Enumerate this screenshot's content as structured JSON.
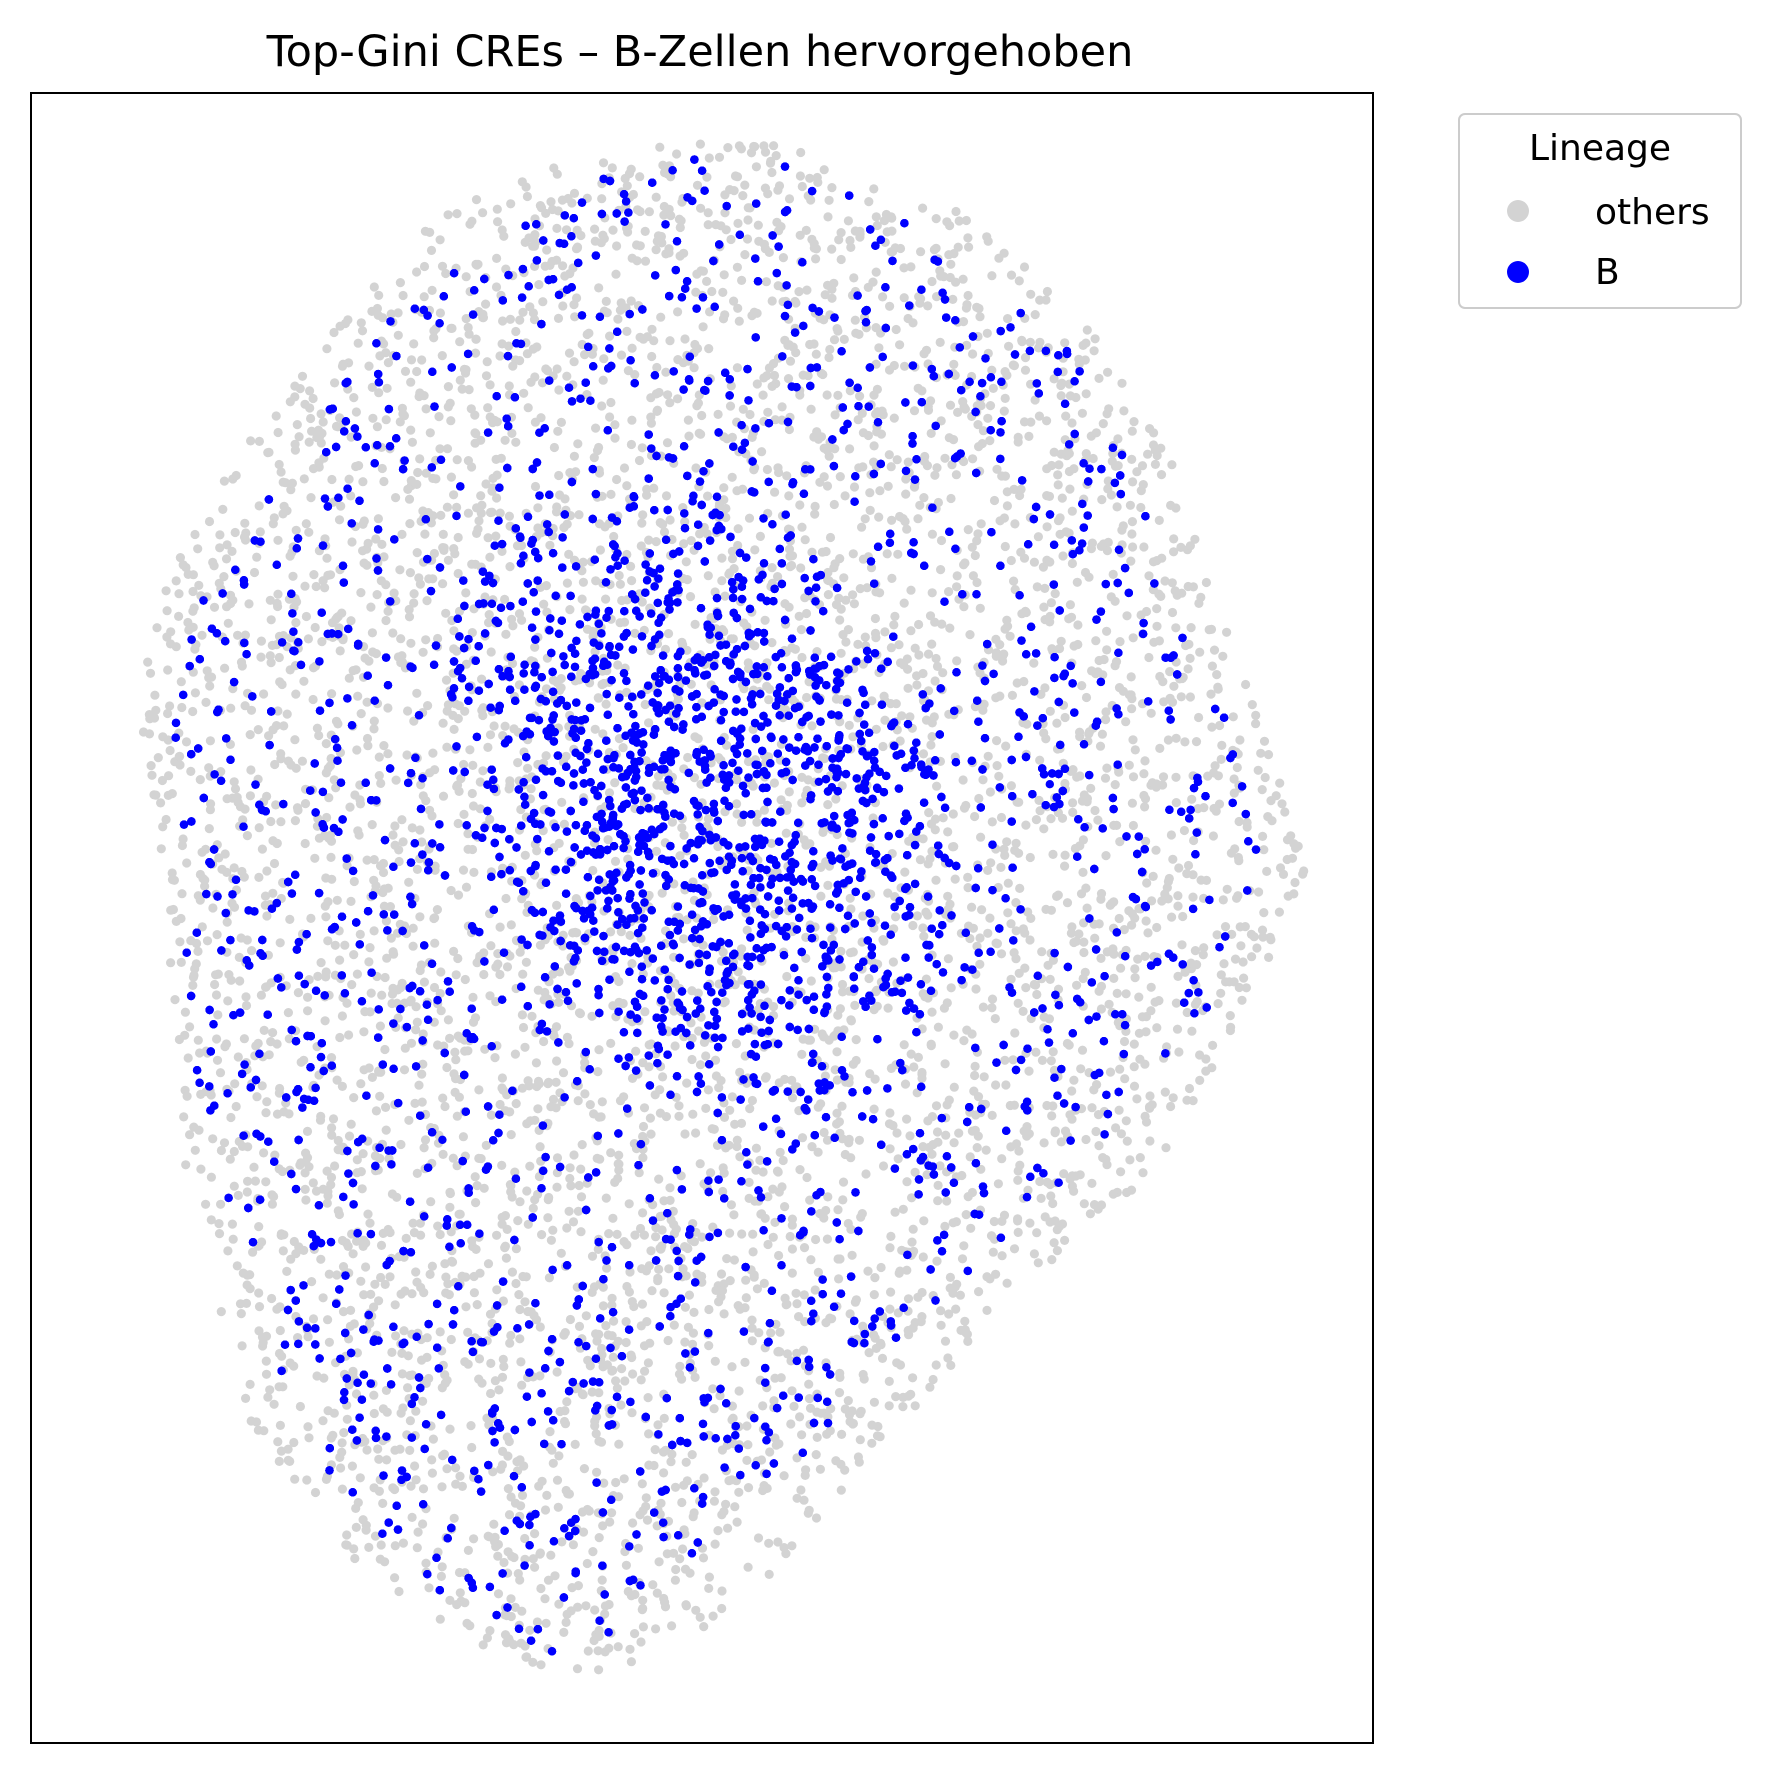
{
  "chart_data": {
    "type": "scatter",
    "title": "Top-Gini CREs – B-Zellen hervorgehoben",
    "xlabel": "",
    "ylabel": "",
    "axes_ticks_visible": false,
    "grid": false,
    "xlim": [
      0,
      100
    ],
    "ylim": [
      0,
      100
    ],
    "legend": {
      "title": "Lineage",
      "placement": "outside-top-right",
      "entries": [
        {
          "label": "others",
          "color": "#d3d3d3"
        },
        {
          "label": "B",
          "color": "#0000ff"
        }
      ]
    },
    "series": [
      {
        "name": "others",
        "color": "#d3d3d3",
        "description_of_shape": "dense cloud of points forming the envelope",
        "outline": [
          [
            37,
            95
          ],
          [
            45,
            97
          ],
          [
            55,
            97
          ],
          [
            67,
            94
          ],
          [
            72,
            91
          ],
          [
            79,
            86
          ],
          [
            85,
            78
          ],
          [
            88,
            70
          ],
          [
            92,
            61
          ],
          [
            95,
            53
          ],
          [
            91,
            45
          ],
          [
            84,
            35
          ],
          [
            75,
            28
          ],
          [
            66,
            20
          ],
          [
            55,
            10
          ],
          [
            47,
            5
          ],
          [
            40,
            4
          ],
          [
            33,
            6
          ],
          [
            24,
            11
          ],
          [
            17,
            18
          ],
          [
            12,
            30
          ],
          [
            11,
            40
          ],
          [
            10,
            52
          ],
          [
            8,
            62
          ],
          [
            9,
            69
          ],
          [
            13,
            75
          ],
          [
            19,
            82
          ],
          [
            25,
            88
          ],
          [
            31,
            93
          ]
        ]
      },
      {
        "name": "B",
        "color": "#0000ff",
        "description_of_shape": "points covering most of the cloud, densest near the center",
        "core": [
          [
            50,
            57
          ],
          [
            45,
            62
          ],
          [
            55,
            52
          ]
        ],
        "outline": [
          [
            38,
            93
          ],
          [
            45,
            96
          ],
          [
            55,
            96
          ],
          [
            66,
            92
          ],
          [
            72,
            89
          ],
          [
            78,
            84
          ],
          [
            83,
            76
          ],
          [
            86,
            68
          ],
          [
            90,
            60
          ],
          [
            92,
            53
          ],
          [
            88,
            45
          ],
          [
            81,
            37
          ],
          [
            72,
            30
          ],
          [
            63,
            22
          ],
          [
            52,
            13
          ],
          [
            44,
            7
          ],
          [
            38,
            5
          ],
          [
            32,
            8
          ],
          [
            24,
            14
          ],
          [
            18,
            22
          ],
          [
            14,
            32
          ],
          [
            12,
            42
          ],
          [
            11,
            52
          ],
          [
            10,
            62
          ],
          [
            12,
            68
          ],
          [
            16,
            74
          ],
          [
            21,
            80
          ],
          [
            27,
            87
          ],
          [
            33,
            91
          ]
        ]
      }
    ]
  }
}
